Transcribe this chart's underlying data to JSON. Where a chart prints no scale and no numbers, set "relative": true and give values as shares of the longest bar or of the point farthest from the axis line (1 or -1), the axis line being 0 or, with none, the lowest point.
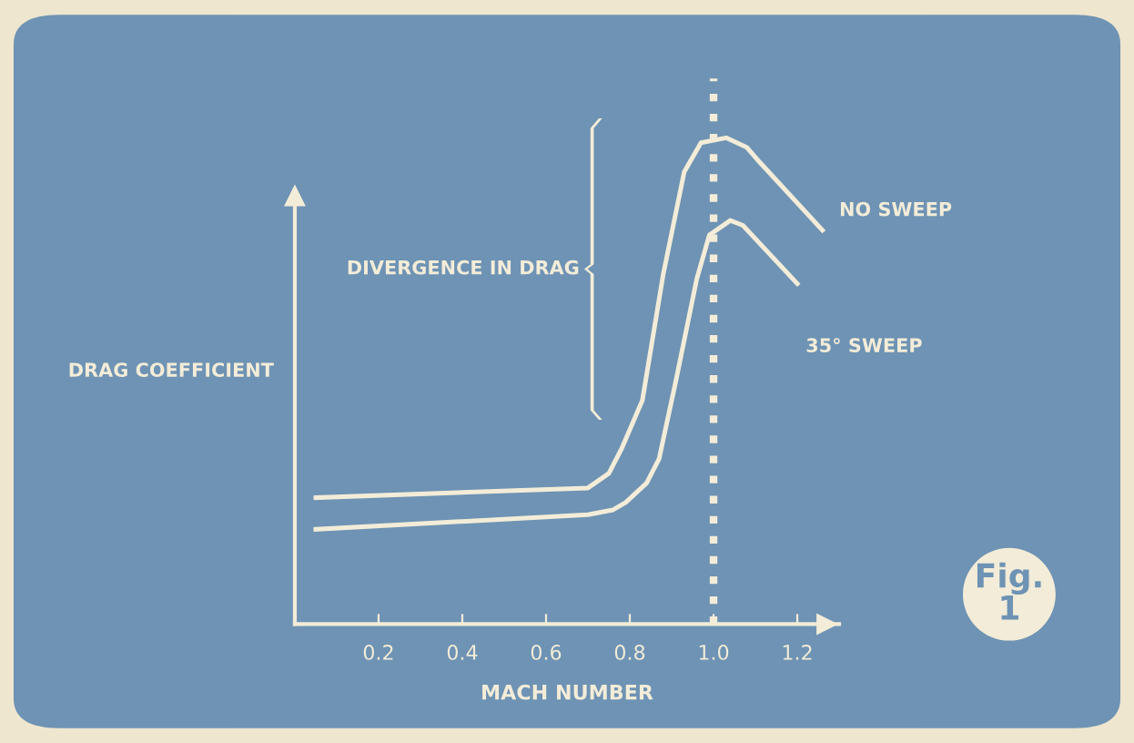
{
  "chart_data": {
    "type": "line",
    "relative": true,
    "xlabel": "MACH NUMBER",
    "ylabel": "DRAG COEFFICIENT",
    "xlim": [
      0,
      1.3
    ],
    "xticks": [
      0.2,
      0.4,
      0.6,
      0.8,
      {
        "value": 1.0,
        "label": "1.0"
      },
      1.2
    ],
    "series": [
      {
        "name": "NO SWEEP",
        "color": "#f3ecd8",
        "x": [
          0.05,
          0.7,
          0.75,
          0.78,
          0.83,
          0.88,
          0.93,
          0.97,
          1.03,
          1.08,
          1.11,
          1.26
        ],
        "values": [
          0.26,
          0.28,
          0.31,
          0.36,
          0.46,
          0.72,
          0.93,
          0.99,
          1.0,
          0.98,
          0.95,
          0.81
        ]
      },
      {
        "name": "35° SWEEP",
        "color": "#f3ecd8",
        "x": [
          0.05,
          0.7,
          0.76,
          0.79,
          0.84,
          0.87,
          0.91,
          0.96,
          0.99,
          1.04,
          1.07,
          1.2
        ],
        "values": [
          0.195,
          0.225,
          0.235,
          0.25,
          0.29,
          0.34,
          0.5,
          0.71,
          0.8,
          0.83,
          0.82,
          0.7
        ]
      }
    ],
    "ref_lines": [
      {
        "axis": "x",
        "value": 1.0,
        "line_style": "dotted",
        "color": "#f3ecd8"
      }
    ],
    "annotations": [
      "DIVERGENCE IN DRAG",
      "Fig.\n1"
    ],
    "grid": false,
    "legend": false,
    "marker": "none",
    "line_style": "solid"
  }
}
